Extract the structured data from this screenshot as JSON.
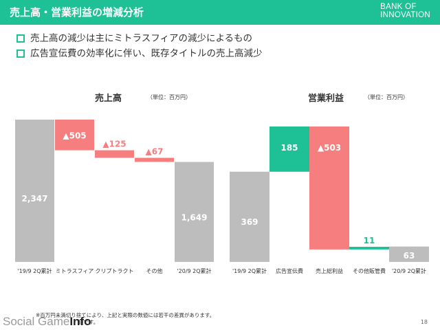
{
  "header": {
    "title": "売上高・営業利益の増減分析",
    "logo_line1": "BANK OF",
    "logo_line2": "INNOVATION"
  },
  "bullets": [
    "売上高の減少は主にミトラスフィアの減少によるもの",
    "広告宣伝費の効率化に伴い、既存タイトルの売上高減少"
  ],
  "colors": {
    "accent": "#1ec096",
    "total": "#bdbdbd",
    "negative": "#f77e7e",
    "positive": "#1ec096"
  },
  "chart_data": [
    {
      "type": "bar",
      "title": "売上高",
      "unit": "（単位：百万円）",
      "categories": [
        "'19/9 2Q累計",
        "ミトラスフィア",
        "クリプトラクト",
        "その他",
        "'20/9 2Q累計"
      ],
      "steps": [
        {
          "kind": "total",
          "value": 2347,
          "label": "2,347"
        },
        {
          "kind": "decrease",
          "value": 505,
          "label": "▲505"
        },
        {
          "kind": "decrease",
          "value": 125,
          "label": "▲125"
        },
        {
          "kind": "decrease",
          "value": 67,
          "label": "▲67"
        },
        {
          "kind": "total",
          "value": 1649,
          "label": "1,649"
        }
      ],
      "ylim": [
        0,
        2347
      ]
    },
    {
      "type": "bar",
      "title": "営業利益",
      "unit": "（単位：百万円）",
      "categories": [
        "'19/9 2Q累計",
        "広告宣伝費",
        "売上総利益",
        "その他販管費",
        "'20/9 2Q累計"
      ],
      "steps": [
        {
          "kind": "total",
          "value": 369,
          "label": "369"
        },
        {
          "kind": "increase",
          "value": 185,
          "label": "185"
        },
        {
          "kind": "decrease",
          "value": 503,
          "label": "▲503"
        },
        {
          "kind": "increase",
          "value": 11,
          "label": "11"
        },
        {
          "kind": "total",
          "value": 63,
          "label": "63"
        }
      ],
      "ylim": [
        0,
        554
      ]
    }
  ],
  "footnote_line1": "※百万円未満切り捨てにより、上記と実際の数値には若干の差異があります。",
  "footnote_line2": "値です。",
  "watermark_a": "Social Game",
  "watermark_b": "Info",
  "page_number": "18"
}
